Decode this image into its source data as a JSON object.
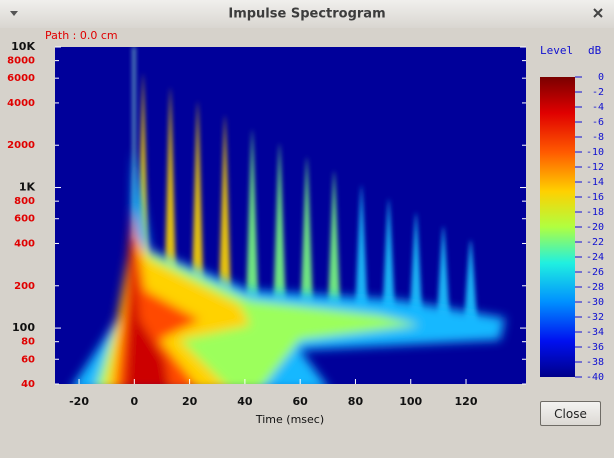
{
  "window": {
    "title": "Impulse Spectrogram",
    "close_button": "Close"
  },
  "plot": {
    "path_label": "Path : 0.0 cm",
    "x_label": "Time (msec)",
    "xlim": [
      -28.7,
      141.7
    ],
    "xticks": [
      -20,
      0,
      20,
      40,
      60,
      80,
      100,
      120
    ],
    "ylim": [
      40,
      10000
    ],
    "y_scale": "log",
    "yticks": [
      {
        "value": 10000,
        "label": "10K"
      },
      8000,
      6000,
      4000,
      2000,
      {
        "value": 1000,
        "label": "1K"
      },
      800,
      600,
      400,
      200,
      100,
      80,
      60,
      40
    ],
    "colorbar": {
      "title": "Level",
      "unit": "dB",
      "lim": [
        -40,
        0
      ],
      "ticks": [
        0,
        -2,
        -4,
        -6,
        -8,
        -10,
        -12,
        -14,
        -16,
        -18,
        -20,
        -22,
        -24,
        -26,
        -28,
        -30,
        -32,
        -34,
        -36,
        -38,
        -40
      ]
    }
  }
}
